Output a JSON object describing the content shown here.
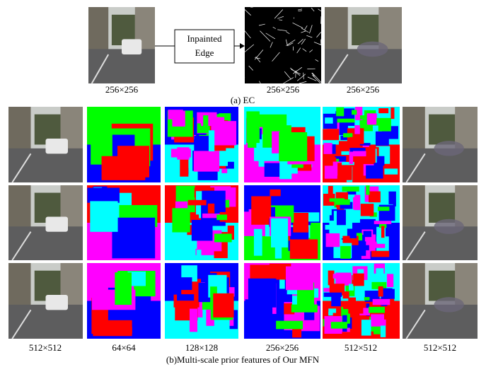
{
  "top": {
    "labels": [
      "256×256",
      "256×256",
      "256×256"
    ],
    "box_lines": [
      "Inpainted",
      "Edge"
    ],
    "caption": "(a) EC"
  },
  "bottom": {
    "labels": [
      "512×512",
      "64×64",
      "128×128",
      "256×256",
      "512×512",
      "512×512"
    ],
    "caption": "(b)Multi-scale prior features of Our MFN"
  }
}
